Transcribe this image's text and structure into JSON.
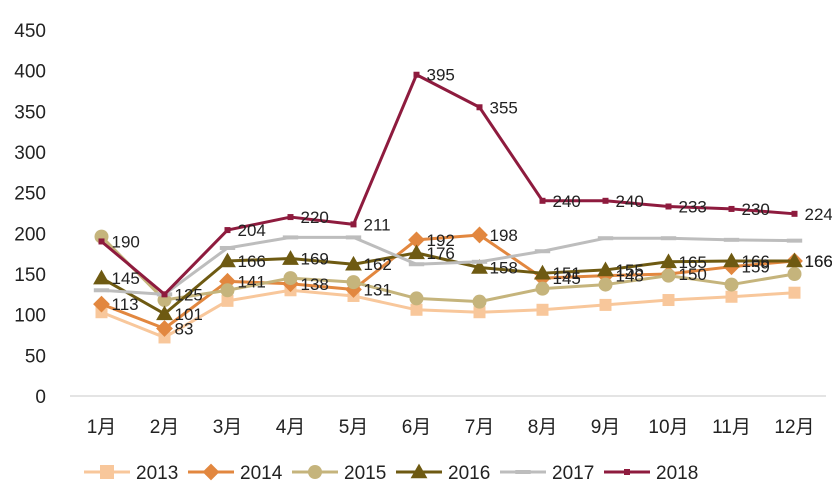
{
  "chart_data": {
    "type": "line",
    "title": "",
    "xlabel": "",
    "ylabel": "",
    "categories": [
      "1月",
      "2月",
      "3月",
      "4月",
      "5月",
      "6月",
      "7月",
      "8月",
      "9月",
      "10月",
      "11月",
      "12月"
    ],
    "ylim": [
      0,
      450
    ],
    "yticks": [
      0,
      50,
      100,
      150,
      200,
      250,
      300,
      350,
      400,
      450
    ],
    "grid": false,
    "legend_position": "bottom",
    "series": [
      {
        "name": "2013",
        "color": "#F8C79B",
        "marker": "square",
        "values": [
          103,
          72,
          117,
          130,
          123,
          106,
          103,
          106,
          112,
          118,
          122,
          127
        ],
        "labels": [
          null,
          null,
          null,
          null,
          null,
          null,
          null,
          null,
          null,
          null,
          null,
          null
        ]
      },
      {
        "name": "2014",
        "color": "#E2873F",
        "marker": "diamond",
        "values": [
          113,
          83,
          141,
          138,
          131,
          192,
          198,
          145,
          148,
          150,
          159,
          166
        ],
        "labels": [
          "113",
          "83",
          "141",
          "138",
          "131",
          "192",
          "198",
          "145",
          "148",
          "150",
          "159",
          "166"
        ]
      },
      {
        "name": "2015",
        "color": "#C5B47C",
        "marker": "circle",
        "values": [
          196,
          118,
          130,
          145,
          140,
          120,
          116,
          132,
          137,
          148,
          137,
          150
        ],
        "labels": [
          null,
          null,
          null,
          null,
          null,
          null,
          null,
          null,
          null,
          null,
          null,
          null
        ]
      },
      {
        "name": "2016",
        "color": "#6E5A12",
        "marker": "triangle",
        "values": [
          145,
          101,
          166,
          169,
          162,
          176,
          158,
          151,
          155,
          165,
          166,
          166
        ],
        "labels": [
          "145",
          "101",
          "166",
          "169",
          "162",
          "176",
          "158",
          "151",
          "155",
          "165",
          "166",
          "166"
        ]
      },
      {
        "name": "2017",
        "color": "#BDBDBD",
        "marker": "dash",
        "values": [
          130,
          125,
          182,
          195,
          195,
          162,
          165,
          178,
          194,
          194,
          192,
          191
        ],
        "labels": [
          null,
          "125",
          null,
          null,
          null,
          null,
          null,
          null,
          null,
          null,
          null,
          null
        ]
      },
      {
        "name": "2018",
        "color": "#8E1B3E",
        "marker": "small-square",
        "values": [
          190,
          125,
          204,
          220,
          211,
          395,
          355,
          240,
          240,
          233,
          230,
          224
        ],
        "labels": [
          "190",
          null,
          "204",
          "220",
          "211",
          "395",
          "355",
          "240",
          "240",
          "233",
          "230",
          "224"
        ]
      }
    ]
  }
}
